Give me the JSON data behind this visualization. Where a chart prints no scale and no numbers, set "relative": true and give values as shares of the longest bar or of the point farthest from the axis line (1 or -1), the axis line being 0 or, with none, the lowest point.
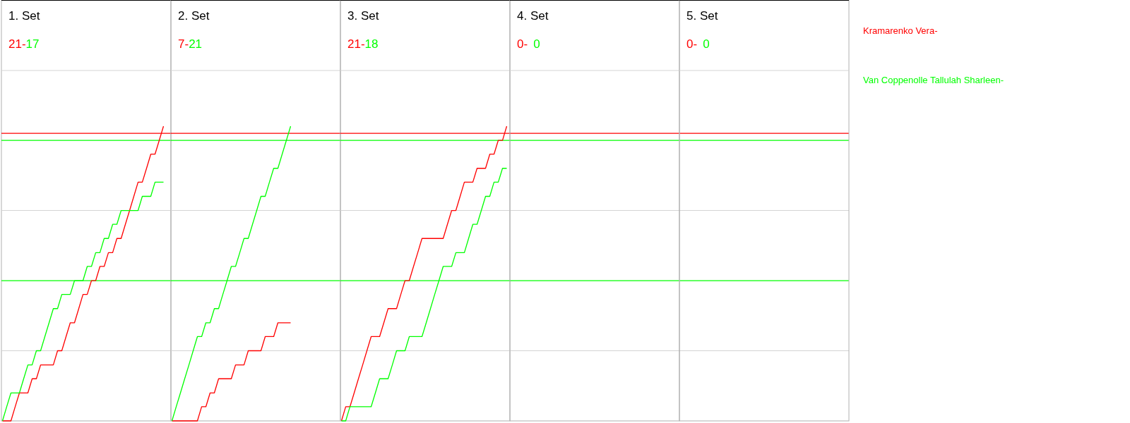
{
  "chart_data": [
    {
      "type": "line",
      "title": "1. Set",
      "annotations": [
        "21-",
        "17"
      ],
      "relative": true,
      "categories": [
        null,
        null,
        null,
        null,
        null,
        null,
        null,
        null,
        null,
        null,
        null,
        null,
        null,
        null,
        null,
        null,
        null,
        null,
        null,
        null,
        null,
        null,
        null,
        null,
        null,
        null,
        null,
        null,
        null,
        null,
        null,
        null,
        null,
        null,
        null,
        null,
        null,
        null,
        null
      ],
      "ref_lines": [
        {
          "axis": "y",
          "value": 0.238,
          "color": "#d3d3d3"
        },
        {
          "axis": "y",
          "value": 0.714,
          "color": "#d3d3d3"
        },
        {
          "axis": "y",
          "value": 0.976,
          "color": "#ff0000"
        },
        {
          "axis": "y",
          "value": 0.952,
          "color": "#00ff00"
        },
        {
          "axis": "y",
          "value": 0.476,
          "color": "#00ff00"
        }
      ],
      "series": [
        {
          "name": "Kramarenko Vera-",
          "color": "#ff0000",
          "values": [
            0,
            0,
            0,
            0.048,
            0.095,
            0.095,
            0.095,
            0.143,
            0.143,
            0.19,
            0.19,
            0.19,
            0.19,
            0.238,
            0.238,
            0.286,
            0.333,
            0.333,
            0.381,
            0.429,
            0.429,
            0.476,
            0.476,
            0.524,
            0.524,
            0.571,
            0.571,
            0.619,
            0.619,
            0.667,
            0.714,
            0.762,
            0.81,
            0.81,
            0.857,
            0.905,
            0.905,
            0.952,
            1
          ]
        },
        {
          "name": "Van Coppenolle Tallulah Sharleen-",
          "color": "#00ff00",
          "values": [
            0,
            0.048,
            0.095,
            0.095,
            0.095,
            0.143,
            0.19,
            0.19,
            0.238,
            0.238,
            0.286,
            0.333,
            0.381,
            0.381,
            0.429,
            0.429,
            0.429,
            0.476,
            0.476,
            0.476,
            0.524,
            0.524,
            0.571,
            0.571,
            0.619,
            0.619,
            0.667,
            0.667,
            0.714,
            0.714,
            0.714,
            0.714,
            0.714,
            0.762,
            0.762,
            0.762,
            0.81,
            0.81,
            0.81
          ]
        }
      ]
    },
    {
      "type": "line",
      "title": "2. Set",
      "annotations": [
        "7-",
        "21"
      ],
      "relative": true,
      "categories": [
        null,
        null,
        null,
        null,
        null,
        null,
        null,
        null,
        null,
        null,
        null,
        null,
        null,
        null,
        null,
        null,
        null,
        null,
        null,
        null,
        null,
        null,
        null,
        null,
        null,
        null,
        null,
        null,
        null
      ],
      "ref_lines": [
        {
          "axis": "y",
          "value": 0.238,
          "color": "#d3d3d3"
        },
        {
          "axis": "y",
          "value": 0.714,
          "color": "#d3d3d3"
        },
        {
          "axis": "y",
          "value": 0.976,
          "color": "#ff0000"
        },
        {
          "axis": "y",
          "value": 0.952,
          "color": "#00ff00"
        },
        {
          "axis": "y",
          "value": 0.476,
          "color": "#00ff00"
        }
      ],
      "series": [
        {
          "color": "#ff0000",
          "values": [
            0,
            0,
            0,
            0,
            0,
            0,
            0,
            0.048,
            0.048,
            0.095,
            0.095,
            0.143,
            0.143,
            0.143,
            0.143,
            0.19,
            0.19,
            0.19,
            0.238,
            0.238,
            0.238,
            0.238,
            0.286,
            0.286,
            0.286,
            0.333,
            0.333,
            0.333,
            0.333
          ]
        },
        {
          "color": "#00ff00",
          "values": [
            0,
            0.048,
            0.095,
            0.143,
            0.19,
            0.238,
            0.286,
            0.286,
            0.333,
            0.333,
            0.381,
            0.381,
            0.429,
            0.476,
            0.524,
            0.524,
            0.571,
            0.619,
            0.619,
            0.667,
            0.714,
            0.762,
            0.762,
            0.81,
            0.857,
            0.857,
            0.905,
            0.952,
            1
          ]
        }
      ]
    },
    {
      "type": "line",
      "title": "3. Set",
      "annotations": [
        "21-",
        "18"
      ],
      "relative": true,
      "categories": [
        null,
        null,
        null,
        null,
        null,
        null,
        null,
        null,
        null,
        null,
        null,
        null,
        null,
        null,
        null,
        null,
        null,
        null,
        null,
        null,
        null,
        null,
        null,
        null,
        null,
        null,
        null,
        null,
        null,
        null,
        null,
        null,
        null,
        null,
        null,
        null,
        null,
        null,
        null,
        null
      ],
      "ref_lines": [
        {
          "axis": "y",
          "value": 0.238,
          "color": "#d3d3d3"
        },
        {
          "axis": "y",
          "value": 0.714,
          "color": "#d3d3d3"
        },
        {
          "axis": "y",
          "value": 0.976,
          "color": "#ff0000"
        },
        {
          "axis": "y",
          "value": 0.952,
          "color": "#00ff00"
        },
        {
          "axis": "y",
          "value": 0.476,
          "color": "#00ff00"
        }
      ],
      "series": [
        {
          "color": "#ff0000",
          "values": [
            0,
            0.048,
            0.048,
            0.095,
            0.143,
            0.19,
            0.238,
            0.286,
            0.286,
            0.286,
            0.333,
            0.381,
            0.381,
            0.381,
            0.429,
            0.476,
            0.476,
            0.524,
            0.571,
            0.619,
            0.619,
            0.619,
            0.619,
            0.619,
            0.619,
            0.667,
            0.714,
            0.714,
            0.762,
            0.81,
            0.81,
            0.81,
            0.857,
            0.857,
            0.857,
            0.905,
            0.905,
            0.952,
            0.952,
            1
          ]
        },
        {
          "color": "#00ff00",
          "values": [
            0,
            0,
            0.048,
            0.048,
            0.048,
            0.048,
            0.048,
            0.048,
            0.095,
            0.143,
            0.143,
            0.143,
            0.19,
            0.238,
            0.238,
            0.238,
            0.286,
            0.286,
            0.286,
            0.286,
            0.333,
            0.381,
            0.429,
            0.476,
            0.524,
            0.524,
            0.524,
            0.571,
            0.571,
            0.571,
            0.619,
            0.667,
            0.667,
            0.714,
            0.762,
            0.762,
            0.81,
            0.81,
            0.857,
            0.857
          ]
        }
      ]
    },
    {
      "type": "other",
      "title": "4. Set",
      "annotations": [
        "0-",
        "0"
      ],
      "series": [
        {
          "color": "#ff0000"
        },
        {
          "color": "#00ff00"
        }
      ]
    },
    {
      "type": "other",
      "title": "5. Set",
      "annotations": [
        "0-",
        "0"
      ],
      "series": [
        {
          "color": "#ff0000"
        },
        {
          "color": "#00ff00"
        }
      ]
    }
  ]
}
